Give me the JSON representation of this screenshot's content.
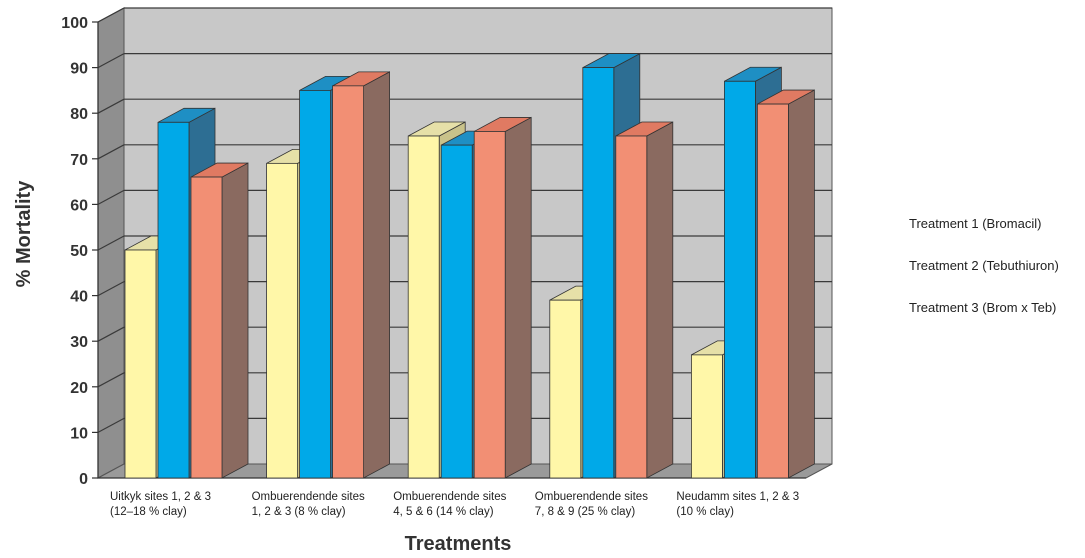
{
  "chart_data": {
    "type": "bar",
    "style": "3d-clustered-column",
    "xlabel": "Treatments",
    "ylabel": "% Mortality",
    "ylim": [
      0,
      100
    ],
    "y_ticks": [
      "0",
      "10",
      "20",
      "30",
      "40",
      "50",
      "60",
      "70",
      "80",
      "90",
      "100"
    ],
    "grid": true,
    "legend_position": "right",
    "categories": [
      [
        "Uitkyk sites 1, 2 & 3",
        "(12–18 % clay)"
      ],
      [
        "Ombuerendende sites",
        "1, 2 & 3 (8 % clay)"
      ],
      [
        "Ombuerendende sites",
        "4, 5 & 6 (14 % clay)"
      ],
      [
        "Ombuerendende sites",
        "7, 8 & 9 (25 % clay)"
      ],
      [
        "Neudamm sites 1, 2 & 3",
        "(10 % clay)"
      ]
    ],
    "series": [
      {
        "name": "Treatment 1 (Bromacil)",
        "values": [
          50,
          69,
          75,
          39,
          27
        ],
        "color": "#fff7a8",
        "top_color": "#e6e0a8",
        "side_color": "#c9c28a"
      },
      {
        "name": "Treatment 2 (Tebuthiuron)",
        "values": [
          78,
          85,
          73,
          90,
          87
        ],
        "color": "#00a9e8",
        "top_color": "#1e8fc4",
        "side_color": "#2d6e93"
      },
      {
        "name": "Treatment 3 (Brom x Teb)",
        "values": [
          66,
          86,
          76,
          75,
          82
        ],
        "color": "#f28f74",
        "top_color": "#e07a62",
        "side_color": "#8a6a60"
      }
    ],
    "colors": {
      "wall": "#c8c8c8",
      "side_wall": "#8f8f8f",
      "floor": "#9a9a9a",
      "gridline": "#3a3a3a"
    }
  }
}
